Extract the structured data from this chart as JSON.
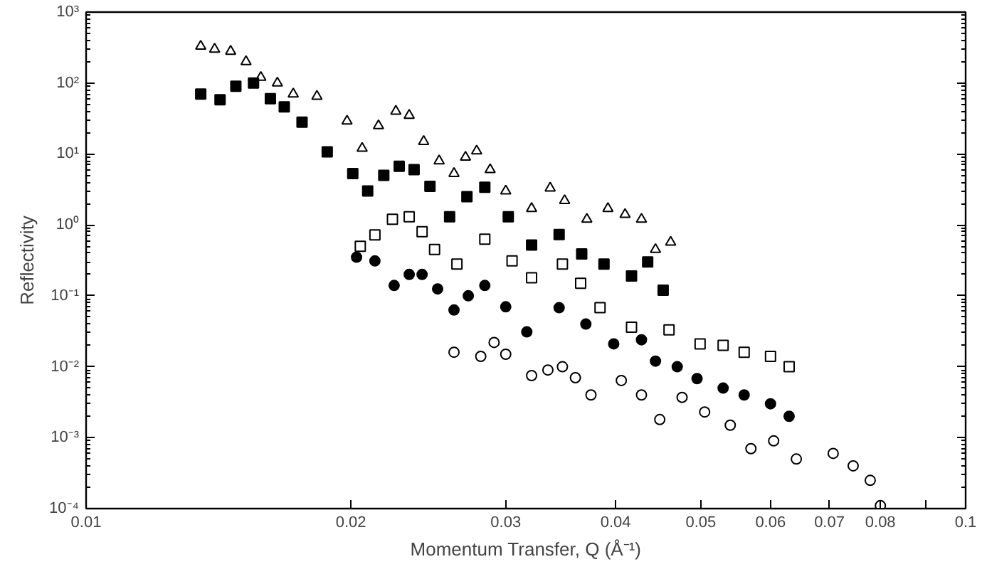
{
  "chart_data": {
    "type": "scatter",
    "xlabel": "Momentum Transfer, Q (Å⁻¹)",
    "ylabel": "Reflectivity",
    "log": "xy",
    "grid": false,
    "xlim": [
      0.01,
      0.1
    ],
    "ylim": [
      0.0001,
      1000
    ],
    "xticks": [
      0.01,
      0.02,
      0.03,
      0.04,
      0.05,
      0.06,
      0.07,
      0.08,
      {
        "value": 0.09,
        "label": null
      },
      0.1
    ],
    "yticks": [
      {
        "value": 0.0001,
        "label": "10⁻⁴"
      },
      {
        "value": 0.001,
        "label": "10⁻³"
      },
      {
        "value": 0.01,
        "label": "10⁻²"
      },
      {
        "value": 0.1,
        "label": "10⁻¹"
      },
      {
        "value": 1,
        "label": "10⁰"
      },
      {
        "value": 10,
        "label": "10¹"
      },
      {
        "value": 100,
        "label": "10²"
      },
      {
        "value": 1000,
        "label": "10³"
      }
    ],
    "series": [
      {
        "marker": "triangle",
        "color": "#ffffff",
        "x": [
          0.0135,
          0.014,
          0.0146,
          0.0152,
          0.0158,
          0.0165,
          0.0172,
          0.0183,
          0.0198,
          0.0206,
          0.0215,
          0.0225,
          0.0233,
          0.0242,
          0.0252,
          0.0262,
          0.027,
          0.0278,
          0.0288,
          0.03,
          0.0321,
          0.0337,
          0.035,
          0.0371,
          0.0392,
          0.041,
          0.0428,
          0.0444,
          0.0462
        ],
        "values": [
          330,
          300,
          280,
          200,
          120,
          100,
          70,
          65,
          29,
          12,
          25,
          40,
          35,
          15,
          8,
          5.3,
          9,
          11,
          6,
          3,
          1.7,
          3.3,
          2.2,
          1.2,
          1.7,
          1.4,
          1.2,
          0.45,
          0.57
        ]
      },
      {
        "marker": "square",
        "color": "#000000",
        "x": [
          0.0135,
          0.0142,
          0.0148,
          0.0155,
          0.0162,
          0.0168,
          0.0176,
          0.0188,
          0.0201,
          0.0209,
          0.0218,
          0.0227,
          0.0236,
          0.0246,
          0.0259,
          0.0271,
          0.0284,
          0.0302,
          0.0321,
          0.0345,
          0.0366,
          0.0388,
          0.0417,
          0.0435,
          0.0453
        ],
        "values": [
          70,
          58,
          90,
          100,
          60,
          46,
          28,
          10.7,
          5.3,
          3,
          5,
          6.7,
          6,
          3.5,
          1.3,
          2.5,
          3.4,
          1.3,
          0.52,
          0.73,
          0.39,
          0.28,
          0.19,
          0.3,
          0.12
        ]
      },
      {
        "marker": "square",
        "color": "#ffffff",
        "x": [
          0.0205,
          0.0213,
          0.0223,
          0.0233,
          0.0241,
          0.0249,
          0.0264,
          0.0284,
          0.0305,
          0.0321,
          0.0348,
          0.0365,
          0.0384,
          0.0417,
          0.046,
          0.0499,
          0.053,
          0.056,
          0.06,
          0.063
        ],
        "values": [
          0.5,
          0.72,
          1.2,
          1.3,
          0.8,
          0.45,
          0.28,
          0.63,
          0.31,
          0.18,
          0.28,
          0.15,
          0.068,
          0.036,
          0.033,
          0.021,
          0.02,
          0.016,
          0.014,
          0.01
        ]
      },
      {
        "marker": "circle",
        "color": "#000000",
        "x": [
          0.0203,
          0.0213,
          0.0224,
          0.0233,
          0.0241,
          0.0251,
          0.0262,
          0.0272,
          0.0284,
          0.03,
          0.0317,
          0.0345,
          0.037,
          0.0398,
          0.0428,
          0.0444,
          0.047,
          0.0495,
          0.053,
          0.056,
          0.06,
          0.063
        ],
        "values": [
          0.35,
          0.31,
          0.14,
          0.2,
          0.2,
          0.125,
          0.063,
          0.1,
          0.14,
          0.07,
          0.031,
          0.068,
          0.04,
          0.021,
          0.024,
          0.012,
          0.01,
          0.0068,
          0.005,
          0.004,
          0.003,
          0.002
        ]
      },
      {
        "marker": "circle",
        "color": "#ffffff",
        "x": [
          0.0262,
          0.0281,
          0.0291,
          0.03,
          0.0321,
          0.0335,
          0.0348,
          0.036,
          0.0375,
          0.0406,
          0.0428,
          0.0449,
          0.0476,
          0.0505,
          0.054,
          0.057,
          0.0605,
          0.0642,
          0.0707,
          0.0745,
          0.0779,
          0.08
        ],
        "values": [
          0.016,
          0.014,
          0.022,
          0.015,
          0.0075,
          0.009,
          0.01,
          0.007,
          0.004,
          0.0064,
          0.004,
          0.0018,
          0.0037,
          0.0023,
          0.0015,
          0.0007,
          0.0009,
          0.0005,
          0.0006,
          0.0004,
          0.00025,
          0.00011
        ]
      }
    ]
  }
}
